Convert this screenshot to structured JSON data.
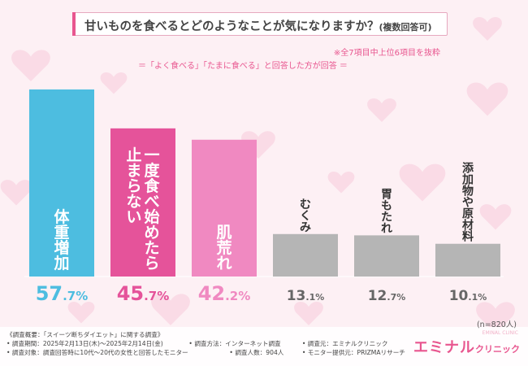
{
  "header": {
    "title": "甘いものを食べるとどのようなことが気になりますか？",
    "title_suffix": "(複数回答可)",
    "note_top": "※全7項目中上位6項目を抜粋",
    "note_sub": "＝「よく食べる」「たまに食べる」と回答した方が回答 ＝"
  },
  "chart_data": {
    "type": "bar",
    "categories": [
      "体重増加",
      "一度食べ始めたら止まらない",
      "肌荒れ",
      "むくみ",
      "胃もたれ",
      "添加物や原材料"
    ],
    "category_lines": [
      [
        "体重増加"
      ],
      [
        "一度食べ始めたら",
        "止まらない"
      ],
      [
        "肌荒れ"
      ],
      [
        "むくみ"
      ],
      [
        "胃もたれ"
      ],
      [
        "添加物や原材料"
      ]
    ],
    "values": [
      57.7,
      45.7,
      42.2,
      13.1,
      12.7,
      10.1
    ],
    "value_int": [
      "57",
      "45",
      "42",
      "13",
      "12",
      "10"
    ],
    "value_dec": [
      ".7",
      ".7",
      ".2",
      ".1",
      ".7",
      ".1"
    ],
    "value_unit": "%",
    "unit": "%",
    "colors": [
      "#4dbde0",
      "#e5539a",
      "#f089c1",
      "#b5b5b5",
      "#b5b5b5",
      "#b5b5b5"
    ],
    "label_colors": [
      "#4dbde0",
      "#e5539a",
      "#f089c1",
      "#666666",
      "#666666",
      "#666666"
    ],
    "ylim": [
      0,
      60
    ]
  },
  "sample": "(n=820人)",
  "footer": {
    "line1": "《調査概要：「スイーツ断ちダイエット」に関する調査》",
    "period": "• 調査期間：2025年2月13日(木)～2025年2月14日(金)",
    "method": "• 調査方法：インターネット調査",
    "organizer": "• 調査元：エミナルクリニック",
    "target": "• 調査対象：調査回答時に10代～20代の女性と回答したモニター",
    "count": "• 調査人数：904人",
    "monitor": "• モニター提供元：PRIZMAリサーチ"
  },
  "logo": {
    "main": "エミナル",
    "sub": "クリニック",
    "tiny": "EMINAL CLINIC"
  }
}
